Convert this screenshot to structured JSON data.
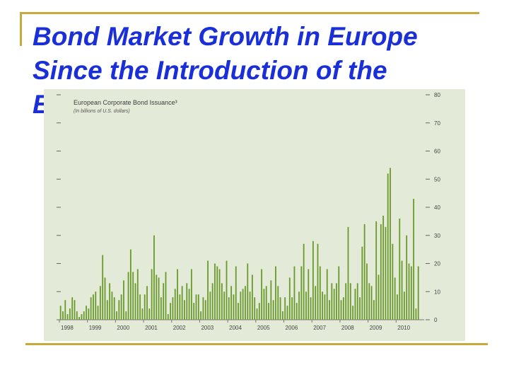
{
  "slide": {
    "title": "Bond Market Growth in Europe Since the Introduction of the\nE"
  },
  "colors": {
    "accent_rule": "#c8a93a",
    "title": "#1a2fd8",
    "panel": "#e4ead8",
    "bar": "#6a9a2c"
  },
  "chart_data": {
    "type": "bar",
    "title": "European Corporate Bond Issuance³",
    "subtitle": "(In billions of U.S. dollars)",
    "xlabel": "",
    "ylabel": "",
    "ylim": [
      0,
      80
    ],
    "yticks": [
      0,
      10,
      20,
      30,
      40,
      50,
      60,
      70,
      80
    ],
    "grid": false,
    "x_tick_labels": [
      "1998",
      "1999",
      "2000",
      "2001",
      "2002",
      "2003",
      "2004",
      "2005",
      "2006",
      "2007",
      "2008",
      "2009",
      "2010"
    ],
    "x_start": "1998-01",
    "frequency": "monthly",
    "values": [
      5,
      3,
      7,
      2,
      4,
      8,
      7,
      3,
      1,
      2,
      3,
      5,
      4,
      8,
      9,
      10,
      5,
      12,
      23,
      15,
      7,
      13,
      10,
      8,
      3,
      7,
      9,
      14,
      3,
      17,
      25,
      17,
      13,
      18,
      9,
      4,
      9,
      12,
      4,
      18,
      30,
      16,
      15,
      8,
      13,
      17,
      2,
      6,
      8,
      11,
      18,
      9,
      12,
      7,
      13,
      11,
      18,
      6,
      9,
      9,
      3,
      8,
      7,
      21,
      10,
      13,
      20,
      19,
      18,
      13,
      10,
      21,
      8,
      12,
      9,
      19,
      6,
      10,
      11,
      12,
      20,
      10,
      16,
      8,
      4,
      6,
      18,
      11,
      12,
      6,
      14,
      7,
      19,
      12,
      8,
      3,
      8,
      5,
      15,
      8,
      19,
      6,
      10,
      19,
      27,
      10,
      18,
      8,
      28,
      12,
      27,
      19,
      10,
      9,
      18,
      7,
      13,
      11,
      13,
      19,
      7,
      8,
      13,
      33,
      13,
      5,
      11,
      13,
      8,
      26,
      34,
      20,
      13,
      12,
      7,
      35,
      16,
      34,
      37,
      33,
      52,
      54,
      27,
      15,
      9,
      36,
      21,
      10,
      30,
      20,
      19,
      43,
      4,
      19
    ]
  }
}
